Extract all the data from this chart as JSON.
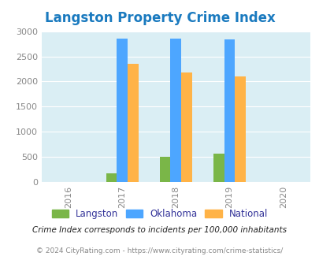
{
  "title": "Langston Property Crime Index",
  "title_color": "#1a7abf",
  "years_all": [
    2016,
    2017,
    2018,
    2019,
    2020
  ],
  "data_years": [
    2017,
    2018,
    2019
  ],
  "langston": [
    175,
    500,
    560
  ],
  "oklahoma": [
    2860,
    2860,
    2840
  ],
  "national": [
    2350,
    2180,
    2100
  ],
  "bar_colors": {
    "langston": "#7ab648",
    "oklahoma": "#4da6ff",
    "national": "#ffb347"
  },
  "ylim": [
    0,
    3000
  ],
  "yticks": [
    0,
    500,
    1000,
    1500,
    2000,
    2500,
    3000
  ],
  "bg_color": "#daeef4",
  "legend_labels": [
    "Langston",
    "Oklahoma",
    "National"
  ],
  "legend_label_color": "#333399",
  "note_text": "Crime Index corresponds to incidents per 100,000 inhabitants",
  "note_color": "#222222",
  "footer_text": "© 2024 CityRating.com - https://www.cityrating.com/crime-statistics/",
  "footer_color": "#888888",
  "bar_width": 0.2
}
